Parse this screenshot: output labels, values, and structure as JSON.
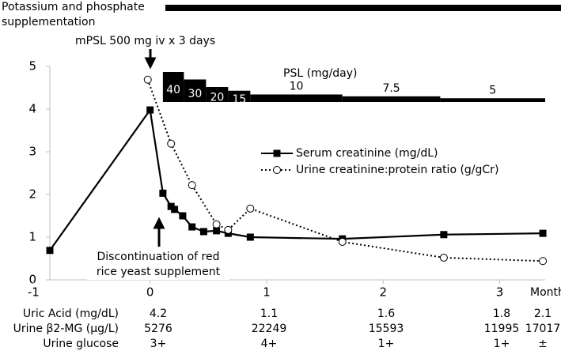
{
  "chart_data": {
    "type": "line",
    "x_axis_label": "Months",
    "xlim": [
      -0.86,
      3.39
    ],
    "xticks": [
      -1,
      0,
      1,
      2,
      3
    ],
    "ylim": [
      0,
      5
    ],
    "yticks": [
      0,
      1,
      2,
      3,
      4,
      5
    ],
    "series": [
      {
        "name": "Serum creatinine (mg/dL)",
        "color": "#000000",
        "marker": "square",
        "dash": "solid",
        "x": [
          -0.86,
          0,
          0.11,
          0.18,
          0.21,
          0.28,
          0.36,
          0.46,
          0.57,
          0.67,
          0.86,
          1.65,
          2.52,
          3.37
        ],
        "values": [
          0.69,
          3.98,
          2.03,
          1.72,
          1.65,
          1.5,
          1.24,
          1.13,
          1.15,
          1.09,
          1.0,
          0.96,
          1.06,
          1.09
        ]
      },
      {
        "name": "Urine creatinine:protein ratio (g/gCr)",
        "color": "#000000",
        "marker": "circle",
        "dash": "dotted",
        "x": [
          -0.02,
          0.18,
          0.36,
          0.57,
          0.67,
          0.86,
          1.65,
          2.52,
          3.37
        ],
        "values": [
          4.69,
          3.19,
          2.22,
          1.3,
          1.17,
          1.67,
          0.89,
          0.52,
          0.44
        ]
      }
    ],
    "psl": {
      "label": "PSL (mg/day)",
      "doses": [
        40,
        30,
        20,
        15,
        10,
        7.5,
        5
      ],
      "starts": [
        0.11,
        0.29,
        0.48,
        0.67,
        0.86,
        1.65,
        2.49
      ],
      "end": 3.39
    },
    "supplementation": "Potassium and phosphate supplementation",
    "annotations": [
      "mPSL 500 mg iv x 3 days",
      "Discontinuation of red rice yeast supplement"
    ],
    "table": {
      "rows": [
        {
          "label": "Uric Acid (mg/dL)",
          "values": [
            4.2,
            1.1,
            1.6,
            1.8,
            2.1
          ]
        },
        {
          "label": "Urine β2-MG (μg/L)",
          "values": [
            5276,
            22249,
            15593,
            11995,
            17017
          ]
        },
        {
          "label": "Urine glucose",
          "values": [
            "3+",
            "4+",
            "1+",
            "1+",
            "±"
          ]
        }
      ]
    }
  }
}
